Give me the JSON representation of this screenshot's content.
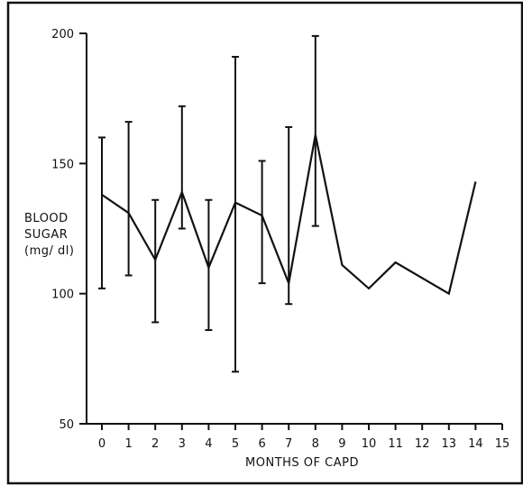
{
  "chart_data": {
    "type": "line",
    "title": "",
    "xlabel": "MONTHS OF CAPD",
    "ylabel_lines": [
      "BLOOD",
      "SUGAR",
      "(mg/ dl)"
    ],
    "xlim": [
      0,
      15
    ],
    "ylim": [
      50,
      200
    ],
    "x_ticks": [
      0,
      1,
      2,
      3,
      4,
      5,
      6,
      7,
      8,
      9,
      10,
      11,
      12,
      13,
      14,
      15
    ],
    "y_ticks": [
      50,
      100,
      150,
      200
    ],
    "grid": false,
    "legend": "none",
    "series": [
      {
        "x": [
          0,
          1,
          2,
          3,
          4,
          5,
          6,
          7,
          8,
          9,
          10,
          11,
          13,
          14
        ],
        "values": [
          138,
          131,
          113,
          139,
          110,
          135,
          130,
          104,
          161,
          111,
          102,
          112,
          100,
          143
        ]
      }
    ],
    "error_bars": [
      {
        "x": 0,
        "low": 102,
        "high": 160
      },
      {
        "x": 1,
        "low": 107,
        "high": 166
      },
      {
        "x": 2,
        "low": 89,
        "high": 136
      },
      {
        "x": 3,
        "low": 125,
        "high": 172
      },
      {
        "x": 4,
        "low": 86,
        "high": 136
      },
      {
        "x": 5,
        "low": 70,
        "high": 191
      },
      {
        "x": 6,
        "low": 104,
        "high": 151
      },
      {
        "x": 7,
        "low": 96,
        "high": 164
      },
      {
        "x": 8,
        "low": 126,
        "high": 199
      }
    ]
  }
}
